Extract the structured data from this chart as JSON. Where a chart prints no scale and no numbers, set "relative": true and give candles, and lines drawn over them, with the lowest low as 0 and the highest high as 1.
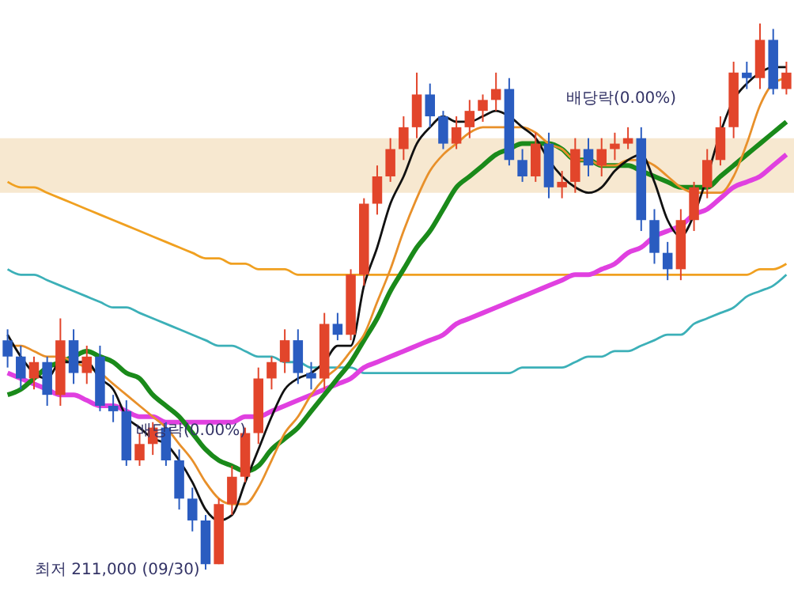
{
  "chart_data": {
    "type": "candlestick",
    "relative": true,
    "categories": [
      null,
      null,
      null,
      null,
      null,
      null,
      null,
      null,
      null,
      null,
      null,
      null,
      null,
      null,
      null,
      null,
      null,
      null,
      null,
      null,
      null,
      null,
      null,
      null,
      null,
      null,
      null,
      null,
      null,
      null,
      null,
      null,
      null,
      null,
      null,
      null,
      null,
      null,
      null,
      null,
      null,
      null,
      null,
      null,
      null,
      null,
      null,
      null,
      null,
      null,
      null,
      null,
      null,
      null,
      null,
      null,
      null,
      null,
      null,
      null
    ],
    "ohlc": [
      [
        0.42,
        0.44,
        0.37,
        0.39
      ],
      [
        0.39,
        0.41,
        0.33,
        0.35
      ],
      [
        0.35,
        0.39,
        0.33,
        0.38
      ],
      [
        0.38,
        0.39,
        0.3,
        0.32
      ],
      [
        0.32,
        0.46,
        0.3,
        0.42
      ],
      [
        0.42,
        0.44,
        0.34,
        0.36
      ],
      [
        0.36,
        0.41,
        0.34,
        0.39
      ],
      [
        0.39,
        0.41,
        0.29,
        0.3
      ],
      [
        0.3,
        0.32,
        0.27,
        0.29
      ],
      [
        0.29,
        0.31,
        0.19,
        0.2
      ],
      [
        0.2,
        0.25,
        0.19,
        0.23
      ],
      [
        0.23,
        0.27,
        0.21,
        0.26
      ],
      [
        0.26,
        0.27,
        0.19,
        0.2
      ],
      [
        0.2,
        0.22,
        0.11,
        0.13
      ],
      [
        0.13,
        0.15,
        0.07,
        0.09
      ],
      [
        0.09,
        0.1,
        0,
        0.01
      ],
      [
        0.01,
        0.13,
        0.01,
        0.12
      ],
      [
        0.12,
        0.19,
        0.1,
        0.17
      ],
      [
        0.17,
        0.26,
        0.16,
        0.25
      ],
      [
        0.25,
        0.37,
        0.23,
        0.35
      ],
      [
        0.35,
        0.39,
        0.33,
        0.38
      ],
      [
        0.38,
        0.44,
        0.36,
        0.42
      ],
      [
        0.42,
        0.44,
        0.34,
        0.36
      ],
      [
        0.36,
        0.38,
        0.33,
        0.35
      ],
      [
        0.35,
        0.47,
        0.33,
        0.45
      ],
      [
        0.45,
        0.47,
        0.42,
        0.43
      ],
      [
        0.43,
        0.55,
        0.42,
        0.54
      ],
      [
        0.54,
        0.68,
        0.52,
        0.67
      ],
      [
        0.67,
        0.74,
        0.65,
        0.72
      ],
      [
        0.72,
        0.79,
        0.71,
        0.77
      ],
      [
        0.77,
        0.83,
        0.75,
        0.81
      ],
      [
        0.81,
        0.91,
        0.79,
        0.87
      ],
      [
        0.87,
        0.89,
        0.81,
        0.83
      ],
      [
        0.83,
        0.84,
        0.77,
        0.78
      ],
      [
        0.78,
        0.83,
        0.77,
        0.81
      ],
      [
        0.81,
        0.86,
        0.79,
        0.84
      ],
      [
        0.84,
        0.87,
        0.82,
        0.86
      ],
      [
        0.86,
        0.91,
        0.84,
        0.88
      ],
      [
        0.88,
        0.9,
        0.74,
        0.75
      ],
      [
        0.75,
        0.77,
        0.71,
        0.72
      ],
      [
        0.72,
        0.8,
        0.71,
        0.78
      ],
      [
        0.78,
        0.8,
        0.68,
        0.7
      ],
      [
        0.7,
        0.73,
        0.68,
        0.71
      ],
      [
        0.71,
        0.79,
        0.69,
        0.77
      ],
      [
        0.77,
        0.79,
        0.72,
        0.74
      ],
      [
        0.74,
        0.79,
        0.72,
        0.77
      ],
      [
        0.77,
        0.8,
        0.75,
        0.78
      ],
      [
        0.78,
        0.81,
        0.77,
        0.79
      ],
      [
        0.79,
        0.81,
        0.62,
        0.64
      ],
      [
        0.64,
        0.66,
        0.56,
        0.58
      ],
      [
        0.58,
        0.6,
        0.53,
        0.55
      ],
      [
        0.55,
        0.66,
        0.53,
        0.64
      ],
      [
        0.64,
        0.71,
        0.62,
        0.7
      ],
      [
        0.7,
        0.77,
        0.68,
        0.75
      ],
      [
        0.75,
        0.83,
        0.74,
        0.81
      ],
      [
        0.81,
        0.93,
        0.79,
        0.91
      ],
      [
        0.91,
        0.93,
        0.88,
        0.9
      ],
      [
        0.9,
        1,
        0.88,
        0.97
      ],
      [
        0.97,
        0.99,
        0.87,
        0.88
      ],
      [
        0.88,
        0.93,
        0.87,
        0.91
      ]
    ],
    "colors": [
      "#2a5cc0",
      "#2a5cc0",
      "#e2452b",
      "#2a5cc0",
      "#e2452b",
      "#2a5cc0",
      "#e2452b",
      "#2a5cc0",
      "#2a5cc0",
      "#2a5cc0",
      "#e2452b",
      "#e2452b",
      "#2a5cc0",
      "#2a5cc0",
      "#2a5cc0",
      "#2a5cc0",
      "#e2452b",
      "#e2452b",
      "#e2452b",
      "#e2452b",
      "#e2452b",
      "#e2452b",
      "#2a5cc0",
      "#2a5cc0",
      "#e2452b",
      "#2a5cc0",
      "#e2452b",
      "#e2452b",
      "#e2452b",
      "#e2452b",
      "#e2452b",
      "#e2452b",
      "#2a5cc0",
      "#2a5cc0",
      "#e2452b",
      "#e2452b",
      "#e2452b",
      "#e2452b",
      "#2a5cc0",
      "#2a5cc0",
      "#e2452b",
      "#2a5cc0",
      "#e2452b",
      "#e2452b",
      "#2a5cc0",
      "#e2452b",
      "#e2452b",
      "#e2452b",
      "#2a5cc0",
      "#2a5cc0",
      "#2a5cc0",
      "#e2452b",
      "#e2452b",
      "#e2452b",
      "#e2452b",
      "#e2452b",
      "#2a5cc0",
      "#e2452b",
      "#2a5cc0",
      "#e2452b"
    ],
    "series": [
      {
        "type": "line",
        "color": "#3cb0b8",
        "values": [
          0.55,
          0.54,
          0.54,
          0.53,
          0.52,
          0.51,
          0.5,
          0.49,
          0.48,
          0.48,
          0.47,
          0.46,
          0.45,
          0.44,
          0.43,
          0.42,
          0.41,
          0.41,
          0.4,
          0.39,
          0.39,
          0.38,
          0.38,
          0.37,
          0.37,
          0.37,
          0.37,
          0.36,
          0.36,
          0.36,
          0.36,
          0.36,
          0.36,
          0.36,
          0.36,
          0.36,
          0.36,
          0.36,
          0.36,
          0.37,
          0.37,
          0.37,
          0.37,
          0.38,
          0.39,
          0.39,
          0.4,
          0.4,
          0.41,
          0.42,
          0.43,
          0.43,
          0.45,
          0.46,
          0.47,
          0.48,
          0.5,
          0.51,
          0.52,
          0.54
        ]
      },
      {
        "type": "line",
        "color": "#f0a020",
        "values": [
          0.71,
          0.7,
          0.7,
          0.69,
          0.68,
          0.67,
          0.66,
          0.65,
          0.64,
          0.63,
          0.62,
          0.61,
          0.6,
          0.59,
          0.58,
          0.57,
          0.57,
          0.56,
          0.56,
          0.55,
          0.55,
          0.55,
          0.54,
          0.54,
          0.54,
          0.54,
          0.54,
          0.54,
          0.54,
          0.54,
          0.54,
          0.54,
          0.54,
          0.54,
          0.54,
          0.54,
          0.54,
          0.54,
          0.54,
          0.54,
          0.54,
          0.54,
          0.54,
          0.54,
          0.54,
          0.54,
          0.54,
          0.54,
          0.54,
          0.54,
          0.54,
          0.54,
          0.54,
          0.54,
          0.54,
          0.54,
          0.54,
          0.55,
          0.55,
          0.56
        ]
      },
      {
        "type": "line",
        "color": "#e040e0",
        "values": [
          0.36,
          0.35,
          0.34,
          0.33,
          0.32,
          0.32,
          0.31,
          0.3,
          0.3,
          0.29,
          0.28,
          0.28,
          0.27,
          0.27,
          0.27,
          0.27,
          0.27,
          0.27,
          0.28,
          0.28,
          0.29,
          0.3,
          0.31,
          0.32,
          0.33,
          0.34,
          0.35,
          0.37,
          0.38,
          0.39,
          0.4,
          0.41,
          0.42,
          0.43,
          0.45,
          0.46,
          0.47,
          0.48,
          0.49,
          0.5,
          0.51,
          0.52,
          0.53,
          0.54,
          0.54,
          0.55,
          0.56,
          0.58,
          0.59,
          0.61,
          0.62,
          0.63,
          0.65,
          0.66,
          0.68,
          0.7,
          0.71,
          0.72,
          0.74,
          0.76
        ]
      },
      {
        "type": "line",
        "color": "#1a8a1a",
        "values": [
          0.32,
          0.33,
          0.35,
          0.37,
          0.38,
          0.39,
          0.4,
          0.39,
          0.38,
          0.36,
          0.35,
          0.32,
          0.3,
          0.28,
          0.25,
          0.22,
          0.2,
          0.19,
          0.18,
          0.19,
          0.22,
          0.24,
          0.26,
          0.29,
          0.32,
          0.35,
          0.38,
          0.42,
          0.46,
          0.51,
          0.55,
          0.59,
          0.62,
          0.66,
          0.7,
          0.72,
          0.74,
          0.76,
          0.77,
          0.78,
          0.78,
          0.78,
          0.77,
          0.75,
          0.75,
          0.74,
          0.74,
          0.74,
          0.73,
          0.72,
          0.71,
          0.7,
          0.7,
          0.7,
          0.72,
          0.74,
          0.76,
          0.78,
          0.8,
          0.82
        ]
      },
      {
        "type": "line",
        "color": "#e8902a",
        "values": [
          0.41,
          0.41,
          0.4,
          0.39,
          0.39,
          0.38,
          0.37,
          0.36,
          0.34,
          0.32,
          0.3,
          0.28,
          0.26,
          0.23,
          0.2,
          0.16,
          0.13,
          0.12,
          0.12,
          0.15,
          0.2,
          0.25,
          0.28,
          0.32,
          0.35,
          0.37,
          0.4,
          0.43,
          0.49,
          0.55,
          0.62,
          0.68,
          0.73,
          0.76,
          0.78,
          0.8,
          0.81,
          0.81,
          0.81,
          0.81,
          0.8,
          0.78,
          0.77,
          0.75,
          0.75,
          0.74,
          0.74,
          0.75,
          0.75,
          0.74,
          0.72,
          0.7,
          0.69,
          0.69,
          0.69,
          0.72,
          0.78,
          0.85,
          0.89,
          0.9
        ]
      },
      {
        "type": "line",
        "color": "#111111",
        "values": [
          0.43,
          0.39,
          0.36,
          0.35,
          0.38,
          0.38,
          0.38,
          0.35,
          0.33,
          0.28,
          0.26,
          0.24,
          0.23,
          0.2,
          0.16,
          0.11,
          0.09,
          0.1,
          0.16,
          0.22,
          0.28,
          0.33,
          0.35,
          0.36,
          0.38,
          0.41,
          0.41,
          0.52,
          0.59,
          0.67,
          0.72,
          0.78,
          0.81,
          0.83,
          0.82,
          0.82,
          0.83,
          0.84,
          0.83,
          0.81,
          0.79,
          0.75,
          0.72,
          0.7,
          0.69,
          0.7,
          0.73,
          0.75,
          0.76,
          0.71,
          0.64,
          0.61,
          0.65,
          0.72,
          0.8,
          0.86,
          0.89,
          0.91,
          0.92,
          0.92
        ]
      }
    ],
    "bands": [
      {
        "axis": "y",
        "from": 0.69,
        "to": 0.79,
        "color": "#f6e4c8"
      }
    ],
    "annotations": [
      "최저 211,000 (09/30)",
      "배당락(0.00%)",
      "배당락(0.00%)"
    ]
  }
}
